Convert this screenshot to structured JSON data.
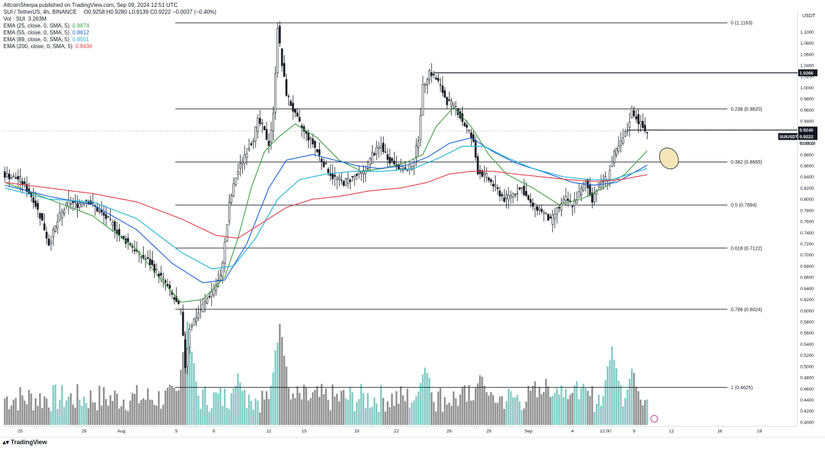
{
  "header": {
    "publisher": "AltcoinSherpa published on TradingView.com, Sep 09, 2024 12:51 UTC",
    "symbol_line": "SUI / TetherUS, 4h, BINANCE",
    "ohlc": "O0.9258  H0.9280  L0.9139  C0.9222  −0.0037 (−0.40%)",
    "volume_label": "Vol · SUI",
    "volume_value": "3.263M",
    "indicators": [
      {
        "label": "EMA (25, close, 0, SMA, 5)",
        "value": "0.8874",
        "color": "#43a047"
      },
      {
        "label": "EMA (55, close, 0, SMA, 5)",
        "value": "0.8612",
        "color": "#1e63d6"
      },
      {
        "label": "EMA (89, close, 0, SMA, 5)",
        "value": "0.8551",
        "color": "#1fb4d2"
      },
      {
        "label": "EMA (200, close, 0, SMA, 5)",
        "value": "0.8436",
        "color": "#e0404a"
      }
    ]
  },
  "footer": {
    "brand": "TradingView"
  },
  "chart_data": {
    "type": "candlestick",
    "currency_label": "USDT",
    "ylim": [
      0.395,
      1.135
    ],
    "y_ticks": [
      "0.4000",
      "0.4200",
      "0.4400",
      "0.4600",
      "0.4800",
      "0.5000",
      "0.5200",
      "0.5400",
      "0.5600",
      "0.5800",
      "0.6000",
      "0.6200",
      "0.6400",
      "0.6600",
      "0.6800",
      "0.7000",
      "0.7200",
      "0.7400",
      "0.7600",
      "0.7800",
      "0.8000",
      "0.8200",
      "0.8400",
      "0.8600",
      "0.8800",
      "0.9000",
      "0.9200",
      "0.9400",
      "0.9600",
      "0.9800",
      "1.0000",
      "1.0200",
      "1.0400",
      "1.0600",
      "1.0800",
      "1.1000"
    ],
    "x_ticks": [
      "25",
      "29",
      "Aug",
      "5",
      "8",
      "12",
      "15",
      "19",
      "22",
      "26",
      "29",
      "Sep",
      "4",
      "12:00",
      "9",
      "12",
      "16",
      "19"
    ],
    "fib_levels": [
      {
        "ratio": "0",
        "price": 1.1163,
        "label": "0 (1.1163)"
      },
      {
        "ratio": "0.236",
        "price": 0.962,
        "label": "0.236 (0.9620)"
      },
      {
        "ratio": "0.382",
        "price": 0.8665,
        "label": "0.382 (0.8665)"
      },
      {
        "ratio": "0.5",
        "price": 0.7894,
        "label": "0.5 (0.7894)"
      },
      {
        "ratio": "0.618",
        "price": 0.7122,
        "label": "0.618 (0.7122)"
      },
      {
        "ratio": "0.786",
        "price": 0.6024,
        "label": "0.786 (0.6024)"
      },
      {
        "ratio": "1",
        "price": 0.4625,
        "label": "1 (0.4625)"
      }
    ],
    "horizontal_lines": [
      {
        "price": 1.0266,
        "label": "1.0266"
      },
      {
        "price": 0.924,
        "label": "0.9240"
      }
    ],
    "last_price": {
      "price": 0.9222,
      "label": "0.9222",
      "countdown": "03:08:28",
      "symbol": "SUIUSDT"
    },
    "price_path": [
      [
        0,
        0.845
      ],
      [
        8,
        0.835
      ],
      [
        14,
        0.8
      ],
      [
        18,
        0.76
      ],
      [
        21,
        0.72
      ],
      [
        26,
        0.77
      ],
      [
        30,
        0.795
      ],
      [
        34,
        0.79
      ],
      [
        38,
        0.8
      ],
      [
        42,
        0.785
      ],
      [
        46,
        0.77
      ],
      [
        50,
        0.755
      ],
      [
        54,
        0.73
      ],
      [
        58,
        0.72
      ],
      [
        62,
        0.7
      ],
      [
        66,
        0.69
      ],
      [
        70,
        0.67
      ],
      [
        74,
        0.65
      ],
      [
        78,
        0.62
      ],
      [
        81,
        0.6
      ],
      [
        83,
        0.5
      ],
      [
        85,
        0.57
      ],
      [
        88,
        0.59
      ],
      [
        92,
        0.615
      ],
      [
        96,
        0.64
      ],
      [
        99,
        0.66
      ],
      [
        101,
        0.72
      ],
      [
        103,
        0.79
      ],
      [
        106,
        0.84
      ],
      [
        110,
        0.88
      ],
      [
        114,
        0.91
      ],
      [
        116,
        0.94
      ],
      [
        118,
        0.93
      ],
      [
        121,
        0.9
      ],
      [
        123,
        0.95
      ],
      [
        125,
        1.11
      ],
      [
        127,
        1.04
      ],
      [
        129,
        0.99
      ],
      [
        133,
        0.95
      ],
      [
        137,
        0.92
      ],
      [
        141,
        0.9
      ],
      [
        145,
        0.87
      ],
      [
        150,
        0.84
      ],
      [
        155,
        0.83
      ],
      [
        160,
        0.84
      ],
      [
        165,
        0.85
      ],
      [
        168,
        0.88
      ],
      [
        172,
        0.895
      ],
      [
        176,
        0.87
      ],
      [
        180,
        0.86
      ],
      [
        184,
        0.85
      ],
      [
        187,
        0.87
      ],
      [
        189,
        0.91
      ],
      [
        191,
        1.0
      ],
      [
        194,
        1.03
      ],
      [
        198,
        1.01
      ],
      [
        202,
        0.975
      ],
      [
        206,
        0.965
      ],
      [
        209,
        0.94
      ],
      [
        212,
        0.92
      ],
      [
        214,
        0.9
      ],
      [
        216,
        0.85
      ],
      [
        220,
        0.84
      ],
      [
        224,
        0.82
      ],
      [
        228,
        0.8
      ],
      [
        232,
        0.81
      ],
      [
        236,
        0.82
      ],
      [
        240,
        0.79
      ],
      [
        245,
        0.78
      ],
      [
        249,
        0.76
      ],
      [
        252,
        0.78
      ],
      [
        256,
        0.8
      ],
      [
        259,
        0.79
      ],
      [
        262,
        0.81
      ],
      [
        265,
        0.83
      ],
      [
        268,
        0.8
      ],
      [
        270,
        0.82
      ],
      [
        272,
        0.83
      ],
      [
        275,
        0.84
      ],
      [
        278,
        0.88
      ],
      [
        281,
        0.9
      ],
      [
        284,
        0.925
      ],
      [
        286,
        0.96
      ],
      [
        289,
        0.94
      ],
      [
        292,
        0.922
      ]
    ],
    "ema_series": [
      {
        "name": "EMA 25",
        "color": "#43a047",
        "points": [
          [
            0,
            0.83
          ],
          [
            20,
            0.8
          ],
          [
            40,
            0.77
          ],
          [
            60,
            0.71
          ],
          [
            70,
            0.66
          ],
          [
            80,
            0.615
          ],
          [
            90,
            0.62
          ],
          [
            100,
            0.66
          ],
          [
            106,
            0.73
          ],
          [
            112,
            0.82
          ],
          [
            118,
            0.885
          ],
          [
            124,
            0.91
          ],
          [
            132,
            0.935
          ],
          [
            142,
            0.91
          ],
          [
            152,
            0.87
          ],
          [
            162,
            0.85
          ],
          [
            172,
            0.855
          ],
          [
            182,
            0.865
          ],
          [
            190,
            0.88
          ],
          [
            196,
            0.93
          ],
          [
            204,
            0.965
          ],
          [
            212,
            0.93
          ],
          [
            220,
            0.88
          ],
          [
            228,
            0.845
          ],
          [
            240,
            0.82
          ],
          [
            252,
            0.79
          ],
          [
            262,
            0.8
          ],
          [
            272,
            0.82
          ],
          [
            282,
            0.845
          ],
          [
            292,
            0.887
          ]
        ]
      },
      {
        "name": "EMA 55",
        "color": "#1e63d6",
        "points": [
          [
            0,
            0.825
          ],
          [
            20,
            0.805
          ],
          [
            40,
            0.79
          ],
          [
            60,
            0.745
          ],
          [
            76,
            0.685
          ],
          [
            90,
            0.65
          ],
          [
            100,
            0.655
          ],
          [
            110,
            0.72
          ],
          [
            120,
            0.82
          ],
          [
            128,
            0.87
          ],
          [
            140,
            0.88
          ],
          [
            150,
            0.87
          ],
          [
            160,
            0.86
          ],
          [
            170,
            0.855
          ],
          [
            182,
            0.86
          ],
          [
            192,
            0.875
          ],
          [
            202,
            0.9
          ],
          [
            212,
            0.91
          ],
          [
            222,
            0.885
          ],
          [
            232,
            0.865
          ],
          [
            244,
            0.85
          ],
          [
            258,
            0.83
          ],
          [
            268,
            0.825
          ],
          [
            278,
            0.83
          ],
          [
            292,
            0.861
          ]
        ]
      },
      {
        "name": "EMA 89",
        "color": "#1fb4d2",
        "points": [
          [
            0,
            0.82
          ],
          [
            20,
            0.8
          ],
          [
            40,
            0.795
          ],
          [
            60,
            0.765
          ],
          [
            80,
            0.705
          ],
          [
            94,
            0.675
          ],
          [
            104,
            0.68
          ],
          [
            114,
            0.73
          ],
          [
            124,
            0.8
          ],
          [
            134,
            0.835
          ],
          [
            146,
            0.845
          ],
          [
            158,
            0.85
          ],
          [
            172,
            0.85
          ],
          [
            186,
            0.855
          ],
          [
            198,
            0.875
          ],
          [
            208,
            0.895
          ],
          [
            218,
            0.895
          ],
          [
            228,
            0.875
          ],
          [
            240,
            0.855
          ],
          [
            254,
            0.84
          ],
          [
            266,
            0.835
          ],
          [
            276,
            0.835
          ],
          [
            292,
            0.855
          ]
        ]
      },
      {
        "name": "EMA 200",
        "color": "#e0404a",
        "points": [
          [
            0,
            0.83
          ],
          [
            20,
            0.82
          ],
          [
            40,
            0.81
          ],
          [
            60,
            0.795
          ],
          [
            80,
            0.765
          ],
          [
            96,
            0.735
          ],
          [
            106,
            0.73
          ],
          [
            116,
            0.755
          ],
          [
            128,
            0.785
          ],
          [
            140,
            0.8
          ],
          [
            152,
            0.805
          ],
          [
            166,
            0.815
          ],
          [
            180,
            0.82
          ],
          [
            192,
            0.83
          ],
          [
            202,
            0.845
          ],
          [
            212,
            0.85
          ],
          [
            222,
            0.85
          ],
          [
            232,
            0.845
          ],
          [
            244,
            0.84
          ],
          [
            256,
            0.835
          ],
          [
            268,
            0.832
          ],
          [
            280,
            0.835
          ],
          [
            292,
            0.844
          ]
        ]
      }
    ],
    "volume_peaks": [
      {
        "x": 83,
        "v": 1.0
      },
      {
        "x": 125,
        "v": 0.95
      },
      {
        "x": 191,
        "v": 0.55
      },
      {
        "x": 216,
        "v": 0.45
      },
      {
        "x": 276,
        "v": 0.75
      },
      {
        "x": 285,
        "v": 0.5
      },
      {
        "x": 106,
        "v": 0.45
      }
    ],
    "annotation": {
      "type": "ellipse",
      "price": 0.873,
      "bar": 300,
      "color": "#f5e6b8"
    }
  }
}
